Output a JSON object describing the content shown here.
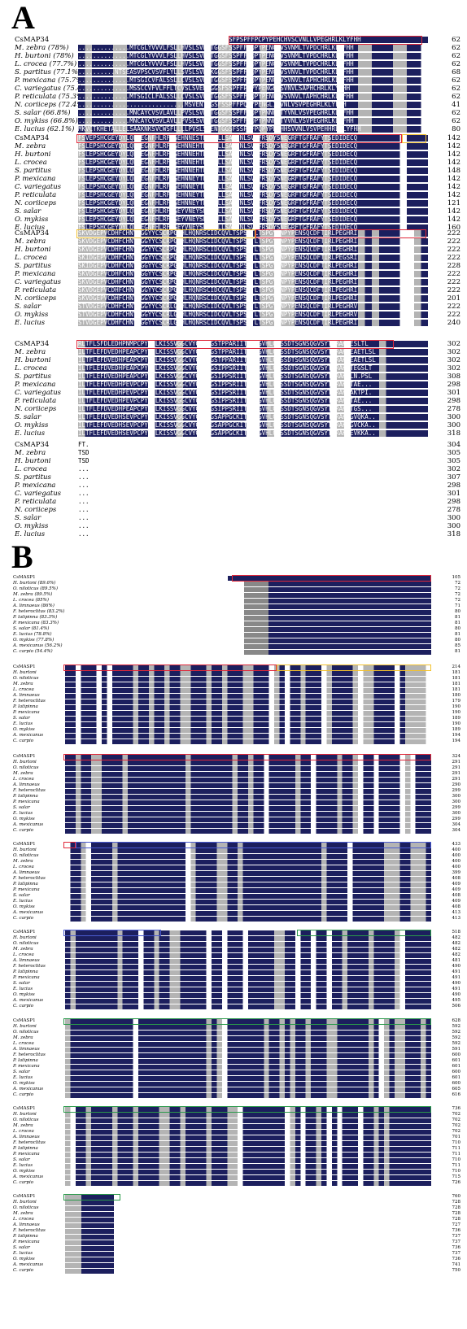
{
  "panel_a": {
    "letter": "A",
    "blocks": [
      {
        "rows": [
          {
            "name": "CsMAP34",
            "seq": "..............MTRCCVLVLYFLLLRCSAVCELRALVGSFPSPFFPCPYPEHCHVSCVNLLVPEGHRLKLYFHH",
            "num": "62"
          },
          {
            "name": "M. zebra (78%)",
            "seq": "..............MTCGLYVVVLFSLLHVSLSVENTGGSFSSPFFPQPYPENGHVSVNMLTVPDCHRLKLYFHH",
            "num": "62"
          },
          {
            "name": "H. burtoni (78%)",
            "seq": "..............MTCGLYVVVLFSLLHVSLSVENTGGSFSSPFFPQPYPENGHVSVNMLTVPDCHRLKLYFHH",
            "num": "62"
          },
          {
            "name": "L. crocea (77.7%)",
            "seq": "..............MTCGLYVVVLFSLLHVSLSVENTGGSFSSPFFPQPYPENGHVSVNMLTVPDCHRLKLYFHH",
            "num": "62"
          },
          {
            "name": "S. partitus (77.1%)",
            "seq": "..........NTSEASVPSCVSVFLYLLSVSLSVENKGGSFSSPFFPQPYPENGHVSVNVLTVPDCHRLKLYFHH",
            "num": "68"
          },
          {
            "name": "P. mexicana (75.7%)",
            "seq": "..............MTSGICVFALSSLLCVSLSVENTGGSFSSPFFPQPYPENGHVSVNVLTAPHCHRLKLYFHH",
            "num": "62"
          },
          {
            "name": "C. variegatus (75.4%)",
            "seq": "..............MSSCCVFVLFFLTCVSLSVENTGGSFSSPFFPQPYPENGHVSVNVLSAPHCHRLKLYFHH",
            "num": "62"
          },
          {
            "name": "P. reticulata (75.3%)",
            "seq": "..............MTSGICLFALSSLLCVSLSVENTGGSFSSPFFPQPYPENGHVSVNVLTAPHCHRLKLYFHH",
            "num": "62"
          },
          {
            "name": "N. coriiceps (72.4%)",
            "seq": ".............................MSVENTGGSFSSPFFPQPYPENGLIYVNLVSVPEGHRLKLYFHH",
            "num": "41"
          },
          {
            "name": "S. salar (66.8%)",
            "seq": "..............MNCAYCVSVLAVLLPVSLSVENTGGSFSSPFFPQPYPNNHHTYVNLVSVPEGHRLKLYFHH",
            "num": "62"
          },
          {
            "name": "O. mykiss (66.8%)",
            "seq": "..............MNCAYCVSVLAVLLPVSLSVENTGGSFSSPFFPQPYPNNHHTVVNLVSVPEGHRLKLYFHH",
            "num": "62"
          },
          {
            "name": "E. lucius (62.1%)",
            "seq": "MKVCTKHETALLELSAAKNKSVCWSFLLLLPVSLSVENTGGSFSSPFFPQPYPENHHSVVNLVSVPEHHRLKLYFHH",
            "num": "80"
          }
        ]
      },
      {
        "rows": [
          {
            "name": "CsMAP34",
            "seq": "FSVEPSHCGEYDYLQLAEGNFHLRFCGEHNNESTPGNTLLSASCNLSVVFRSDYSNEGRFTGFRAFYTSEDIDECQ",
            "num": "142"
          },
          {
            "name": "M. zebra",
            "seq": "FSLEPSHCGEYDYLQLAEGNFHLRFCGEHNNEHTPGNTLLSASCNLSVVFRSDYSNEGRFTGFRAFYTSEDIDECQ",
            "num": "142"
          },
          {
            "name": "H. burtoni",
            "seq": "FSLEPSHCGEYDYLQLAEGNFHLRFCGEHNNEHTPGNTLLSASCNLSVVFRSDYSNEGRFTGFRAFYTSEDIDECQ",
            "num": "142"
          },
          {
            "name": "L. crocea",
            "seq": "FSLEPSHCGEYDYLQLAEGNFHLRFCGEHNNEHTPGNTLLSASCNLSVVFRSDYSNEGRFTGFRAFYTSEDIDECQ",
            "num": "142"
          },
          {
            "name": "S. partitus",
            "seq": "FSLEPSHCGEYDYLQLAEGNFHLRFCGEHNNEHTPGNTLLSASCNLSVVFRSDYSNEGRFTGFRAFYTSEDIDECQ",
            "num": "148"
          },
          {
            "name": "P. mexicana",
            "seq": "FSLEPSHCGEYDYLQLAEGNFHLRFCGEHNNEYTPGNTLLSASCNLSVVFRSDYSNEGRFTGFRAFYTSEDIDECQ",
            "num": "142"
          },
          {
            "name": "C. variegatus",
            "seq": "FSLEPSHCGEYDYLQLAEGNFHLRFCGEHNNEYTPGNTLLSASCNLSVVFRSDYSNEGRFTGFRAFYTSEDIDECQ",
            "num": "142"
          },
          {
            "name": "P. reticulata",
            "seq": "FSLEPSHCGEYDYLQLAEGNFHLRFCGEHNNEYTPGNTLLSASCNLSVVFRSDYSNEGRFTGFRAFYTSEDIDECQ",
            "num": "142"
          },
          {
            "name": "N. coriiceps",
            "seq": "FSLEPSHCGEYDYLQLAEGNFHLRFCGEHNNEYTPGNTLLSASCNLSVVFRSDYSNEGRFTGFRAFYTSEDIDECQ",
            "num": "121"
          },
          {
            "name": "S. salar",
            "seq": "FSLEPSHCGEYDYLQLAEGNFHLRFCGEYVNEYSPGNTLLSASCNLSVVFRSDYSNEGRFTGFRAFYTSEDIDECQ",
            "num": "142"
          },
          {
            "name": "O. mykiss",
            "seq": "FSLEPSHCGEYDYLQLAEGNFHLRFCGEYVNEYSPGNTLLSASCNLSVVFRSDYSNEGRFTGFRAFYTSEDIDECQ",
            "num": "142"
          },
          {
            "name": "E. lucius",
            "seq": "FSLEPSHCGEYDYLQLAEGNFHLRFCGEYVNEYSPGNTLLSASCNLSVVFRSDYSNEGRFTGFRAFYTSEDIDECQ",
            "num": "160"
          }
        ]
      },
      {
        "rows": [
          {
            "name": "CsMAP34",
            "seq": "SKVDGEPVCDHFCHNYLGGYYCSCRPGFHLHQNRSCIDCQVLTSPSGTLTSPGYPNPYPENSQCDFTIRLPEGHRI",
            "num": "222"
          },
          {
            "name": "M. zebra",
            "seq": "SKVDGEPVCDHFCHNYLGGYYCSCRPGFHLHQNRSCIDCQVLTSPSGTLTSPGYPNPYPENSQCDFTIRLPEGHRI",
            "num": "222"
          },
          {
            "name": "H. burtoni",
            "seq": "SKVDGEPVCDHFCHNYLGGYYCSCRPGFHLHQNRSCIDCQVLTSPSGTLTSPGYPNPYPENSQCDFTIRLPEGHRI",
            "num": "222"
          },
          {
            "name": "L. crocea",
            "seq": "SKIDGEPVCDHFCHNYLGGYYCSCRPGFHLHQNRSCIDCQVLTSPSGTLTSPGYPNPYPENSQCDFTIRLPEGSRI",
            "num": "222"
          },
          {
            "name": "S. partitus",
            "seq": "SKIDGEPVCDHFCHNYLGGYYCSCRPGFHLHQNRSCIDCQVLTSPSGTLTSPGYPNPYPENSQCDFTIRLPEGHRI",
            "num": "228"
          },
          {
            "name": "P. mexicana",
            "seq": "SKVDGEPVCDHFCHNYLGGYYCSCRPGFHLHQNRSCIDCQVLTSPSGTLTSPGYPNPYPENSQCDFTIRLPEGHRI",
            "num": "222"
          },
          {
            "name": "C. variegatus",
            "seq": "SKVDGEPVCDHFCHNYLGGYYCSCRPGFHLHQNRSCIDCQVLTSPSGTLTSPGYPNPYPENSQCDFTIRLPEGHRI",
            "num": "222"
          },
          {
            "name": "P. reticulata",
            "seq": "SKVDGEPVCDHFCHNYLGGYYCSCRPGFHLHQNRSCIDCQVLTSPSGTLTSPGYPNPYPENSQCDFTIRLPEGHRI",
            "num": "222"
          },
          {
            "name": "N. coriiceps",
            "seq": "SKVDGEPVCDHFCHNYLGGYYCSCRPGFHLHQNRSCIDCQVLTSPSGTLTSPGYPNPYPENSQCDFTIRLPEGHRI",
            "num": "201"
          },
          {
            "name": "S. salar",
            "seq": "STVDGEPVCDHFCHNYLGGYYCSCRLGYHLHQNRSCIDCQVLTSPSGTLTSPGYPNPYPENSQCDFTIRLPEGHRV",
            "num": "222"
          },
          {
            "name": "O. mykiss",
            "seq": "STVDGEPVCDHFCHNYLGGYYCSCRLGYHLHQNRSCIDCQVLTSPSGTLTSPGYPNPYPENSQCDFTIRLPEGHRV",
            "num": "222"
          },
          {
            "name": "E. lucius",
            "seq": "STVDGEPVCDHFCHNYLGGYYCSCRLGYHLHQNRSCIDCQVLTSPSGTLTSPGYPNPYPENSQCDFTIRLPEGHRI",
            "num": "240"
          }
        ]
      },
      {
        "rows": [
          {
            "name": "CsMAP34",
            "seq": "RLTFLSFDLEDHPNMPCPYDALKISSVGGCVYGPFCGSTPPARIITCSYGVHLQFSSDTSGNSQGVSYTSRAKAESLTL",
            "num": "302"
          },
          {
            "name": "M. zebra",
            "seq": "ILTFLEFDVEDHPEAPCPYDALKISSVGGCVYGPFCGSTPPARIITCSYGVHLQFSSDTSGNSQGVSYTSRAKTEAETLSL",
            "num": "302"
          },
          {
            "name": "H. burtoni",
            "seq": "ILTFLEFDVEDHPEAPCPYDALKISSVGGCVYGPFCGSTPPARIITCSYGVHLQFSSDTSGNSQGVSYTSRAKTEAETLSL",
            "num": "302"
          },
          {
            "name": "L. crocea",
            "seq": "ILTFLEFDVEDHPEAPCPYDALKISSVGGCVYGPFCGSIPPSRIITCSYGVHLQFSSDTSGNSQGVSYTSRAKKTEGSLT",
            "num": "302"
          },
          {
            "name": "S. partitus",
            "seq": "ILTFLEFDVEDHPEAPCPYDALKISSVGGCVYGPFCGSIPPSRIITCSYGVHLQFSSDTSGNSQGVSYTSRAKTLN.PSL",
            "num": "308"
          },
          {
            "name": "P. mexicana",
            "seq": "ILTFLEFDVEDHPEVPCPYDALKISSVGGCVYGPFCGSIPPSRIITCSYGVHLQFSSDTSGNSQGVSYTSRAKTTAE...",
            "num": "298"
          },
          {
            "name": "C. variegatus",
            "seq": "ILTFLEFDVEDHPEVPCPYDALKISSVGGCVYGPFCGSIPPSRIITCSYGVHLQFSSDTSGNSQGVSYTSRAKTAKTPI.",
            "num": "301"
          },
          {
            "name": "P. reticulata",
            "seq": "ILTFLEFDVEDHPEVPCPYDALKISSVGGCVYGPFCGSIPPSRIITCSYGVHLQFSSDTSGNSQGVSYTSRAKTTAE...",
            "num": "298"
          },
          {
            "name": "N. coriiceps",
            "seq": "ILTFLEFDVEDHPEAPCPYDALKISSVGGCVYGPFCGSIPPSRIITCSYGVHLQFSSDTSGNSQGVSYTSRAKKTGS...",
            "num": "278"
          },
          {
            "name": "S. salar",
            "seq": "ILTFLEFDVEDHSEVPCPYDALKISSVGGCVYGPFCGSAPPGCKITCSYGVHLQFSSDTSGNSQGVSYTSRAKLGVQKA..",
            "num": "300"
          },
          {
            "name": "O. mykiss",
            "seq": "ILTFLEFDVEDHSEVPCPYDALKISSVGGCVYGPFCGSAPPGCKITCSYGVHLQFSSDTSGNSQGVSYTSRAKLGVCKA..",
            "num": "300"
          },
          {
            "name": "E. lucius",
            "seq": "ILTFLEFDVEDHSEVPCPYDALKISSVGGCVYGPFCGSAPPGCKITCSYGVHLQFSSDTSGNSQGVSYTSRAKLEVKKA..",
            "num": "318"
          }
        ]
      },
      {
        "rows": [
          {
            "name": "CsMAP34",
            "seq": "FT.",
            "num": "304"
          },
          {
            "name": "M. zebra",
            "seq": "TSD",
            "num": "305"
          },
          {
            "name": "H. burtoni",
            "seq": "TSD",
            "num": "305"
          },
          {
            "name": "L. crocea",
            "seq": "...",
            "num": "302"
          },
          {
            "name": "S. partitus",
            "seq": "...",
            "num": "307"
          },
          {
            "name": "P. mexicana",
            "seq": "...",
            "num": "298"
          },
          {
            "name": "C. variegatus",
            "seq": "...",
            "num": "301"
          },
          {
            "name": "P. reticulata",
            "seq": "...",
            "num": "298"
          },
          {
            "name": "N. coriiceps",
            "seq": "...",
            "num": "278"
          },
          {
            "name": "S. salar",
            "seq": "...",
            "num": "300"
          },
          {
            "name": "O. mykiss",
            "seq": "...",
            "num": "300"
          },
          {
            "name": "E. lucius",
            "seq": "...",
            "num": "318"
          }
        ]
      }
    ]
  },
  "panel_b": {
    "letter": "B",
    "names": [
      "CsMASP1",
      "H. burtoni (89.6%)",
      "O. niloticus (89.5%)",
      "M. zebra (89.5%)",
      "L. crocea (85%)",
      "A. limnaeus (86%)",
      "F. heteroclitus (83.2%)",
      "P. latipinna (83.3%)",
      "P. mexicana (83.3%)",
      "S. salar (81.4%)",
      "E. lucius (78.8%)",
      "O. mykiss (77.8%)",
      "A. mexicanus (56.2%)",
      "C. carpio (54.4%)"
    ],
    "short_names": [
      "CsMASP1",
      "H. burtoni",
      "O. niloticus",
      "M. zebra",
      "L. crocea",
      "A. limnaeus",
      "F. heteroclitus",
      "P. latipinna",
      "P. mexicana",
      "S. salar",
      "E. lucius",
      "O. mykiss",
      "A. mexicanus",
      "C. carpio"
    ],
    "blocks": [
      {
        "nums": [
          "105",
          "72",
          "72",
          "72",
          "72",
          "71",
          "80",
          "81",
          "81",
          "80",
          "81",
          "80",
          "85",
          "81"
        ]
      },
      {
        "nums": [
          "214",
          "181",
          "181",
          "181",
          "181",
          "180",
          "179",
          "190",
          "190",
          "189",
          "190",
          "189",
          "194",
          "194"
        ]
      },
      {
        "nums": [
          "324",
          "291",
          "291",
          "291",
          "291",
          "290",
          "299",
          "300",
          "300",
          "299",
          "300",
          "299",
          "304",
          "304"
        ]
      },
      {
        "nums": [
          "433",
          "400",
          "400",
          "400",
          "400",
          "399",
          "408",
          "409",
          "409",
          "408",
          "409",
          "408",
          "413",
          "413"
        ]
      },
      {
        "nums": [
          "518",
          "482",
          "482",
          "482",
          "482",
          "481",
          "490",
          "491",
          "491",
          "490",
          "491",
          "490",
          "495",
          "506"
        ]
      },
      {
        "nums": [
          "628",
          "592",
          "592",
          "592",
          "592",
          "591",
          "600",
          "601",
          "601",
          "600",
          "601",
          "600",
          "605",
          "616"
        ]
      },
      {
        "nums": [
          "736",
          "702",
          "702",
          "702",
          "702",
          "701",
          "710",
          "711",
          "711",
          "710",
          "711",
          "710",
          "715",
          "726"
        ]
      },
      {
        "nums": [
          "760",
          "728",
          "728",
          "728",
          "728",
          "727",
          "736",
          "737",
          "737",
          "736",
          "737",
          "736",
          "741",
          "750"
        ]
      }
    ]
  },
  "colors": {
    "navy": "#1c1f5e",
    "grey": "#b4b4b4",
    "red": "#e0283a",
    "yellow": "#f2c12e",
    "blue": "#4a5bd0",
    "green": "#2a9a4a"
  }
}
